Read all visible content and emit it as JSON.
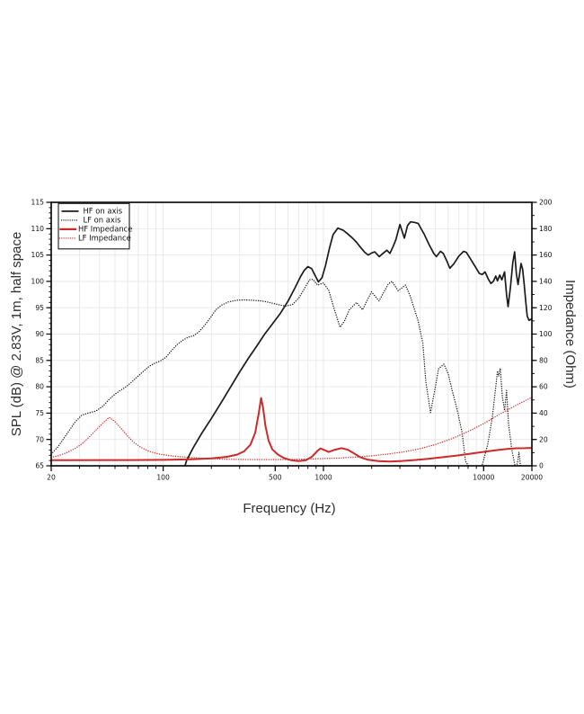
{
  "figure": {
    "background": "#ffffff",
    "accent_red": "#cc2b2b",
    "line_black": "#1b1b1b",
    "grid_color": "#e7e7e7"
  },
  "chart_data": {
    "type": "line",
    "x_scale": "log",
    "xlabel": "Frequency (Hz)",
    "ylabel_left": "SPL (dB) @ 2.83V, 1m, half space",
    "ylabel_right": "Impedance (Ohm)",
    "x_range": [
      20,
      20000
    ],
    "x_ticks_labeled": [
      20,
      100,
      500,
      1000,
      10000,
      20000
    ],
    "y_left_range": [
      65,
      115
    ],
    "y_left_ticks": [
      65,
      70,
      75,
      80,
      85,
      90,
      95,
      100,
      105,
      110,
      115
    ],
    "y_right_range": [
      0,
      200
    ],
    "y_right_ticks": [
      0,
      20,
      40,
      60,
      80,
      100,
      120,
      140,
      160,
      180,
      200
    ],
    "grid": true,
    "legend_position": "top-left",
    "series": [
      {
        "name": "HF on axis",
        "axis": "left",
        "unit": "dB",
        "color": "#1b1b1b",
        "style": "solid",
        "width": 1.7,
        "points": [
          [
            132,
            63.5
          ],
          [
            140,
            66
          ],
          [
            155,
            68.6
          ],
          [
            175,
            71.3
          ],
          [
            200,
            74
          ],
          [
            230,
            77
          ],
          [
            260,
            79.7
          ],
          [
            300,
            82.8
          ],
          [
            340,
            85.4
          ],
          [
            385,
            87.8
          ],
          [
            430,
            90
          ],
          [
            480,
            91.9
          ],
          [
            540,
            94
          ],
          [
            600,
            96.2
          ],
          [
            660,
            98.6
          ],
          [
            720,
            100.9
          ],
          [
            760,
            102.1
          ],
          [
            800,
            102.8
          ],
          [
            845,
            102.4
          ],
          [
            885,
            101.2
          ],
          [
            930,
            99.9
          ],
          [
            980,
            100.7
          ],
          [
            1030,
            103
          ],
          [
            1090,
            106.3
          ],
          [
            1150,
            108.9
          ],
          [
            1230,
            110.1
          ],
          [
            1330,
            109.7
          ],
          [
            1420,
            109
          ],
          [
            1520,
            108.2
          ],
          [
            1610,
            107.4
          ],
          [
            1700,
            106.5
          ],
          [
            1800,
            105.6
          ],
          [
            1900,
            105
          ],
          [
            2000,
            105.4
          ],
          [
            2090,
            105.6
          ],
          [
            2230,
            104.7
          ],
          [
            2350,
            105.3
          ],
          [
            2490,
            105.9
          ],
          [
            2600,
            105.3
          ],
          [
            2720,
            106.6
          ],
          [
            2830,
            107.9
          ],
          [
            3000,
            110.8
          ],
          [
            3200,
            108.2
          ],
          [
            3350,
            110.6
          ],
          [
            3500,
            111.3
          ],
          [
            3700,
            111.2
          ],
          [
            3900,
            111
          ],
          [
            4100,
            109.8
          ],
          [
            4250,
            109
          ],
          [
            4560,
            107
          ],
          [
            4880,
            105.3
          ],
          [
            5070,
            104.7
          ],
          [
            5370,
            105.7
          ],
          [
            5600,
            105.3
          ],
          [
            5900,
            103.8
          ],
          [
            6150,
            102.5
          ],
          [
            6500,
            103.3
          ],
          [
            7000,
            104.8
          ],
          [
            7500,
            105.7
          ],
          [
            7800,
            105.5
          ],
          [
            8300,
            104.2
          ],
          [
            8900,
            102.7
          ],
          [
            9400,
            101.5
          ],
          [
            9800,
            101.3
          ],
          [
            10200,
            101.8
          ],
          [
            10700,
            100.4
          ],
          [
            11100,
            99.6
          ],
          [
            11500,
            100
          ],
          [
            11900,
            101
          ],
          [
            12200,
            100.1
          ],
          [
            12600,
            101.2
          ],
          [
            13000,
            100.3
          ],
          [
            13500,
            101.8
          ],
          [
            13900,
            97.5
          ],
          [
            14200,
            95.2
          ],
          [
            14700,
            99
          ],
          [
            15200,
            103.5
          ],
          [
            15600,
            105.6
          ],
          [
            16000,
            101.5
          ],
          [
            16400,
            99.4
          ],
          [
            16800,
            101.6
          ],
          [
            17100,
            103.4
          ],
          [
            17500,
            102.3
          ],
          [
            17900,
            99.5
          ],
          [
            18300,
            96.3
          ],
          [
            18700,
            93.4
          ],
          [
            19200,
            92.6
          ],
          [
            20000,
            92.9
          ]
        ]
      },
      {
        "name": "LF on axis",
        "axis": "left",
        "unit": "dB",
        "color": "#1b1b1b",
        "style": "dotted",
        "width": 1.35,
        "points": [
          [
            20,
            67.2
          ],
          [
            22,
            68.6
          ],
          [
            25,
            71
          ],
          [
            28,
            73.2
          ],
          [
            31,
            74.6
          ],
          [
            34,
            75
          ],
          [
            38,
            75.4
          ],
          [
            42,
            76.3
          ],
          [
            46,
            77.6
          ],
          [
            50,
            78.6
          ],
          [
            54,
            79.3
          ],
          [
            58,
            79.9
          ],
          [
            63,
            80.8
          ],
          [
            69,
            81.9
          ],
          [
            75,
            82.9
          ],
          [
            82,
            83.9
          ],
          [
            89,
            84.5
          ],
          [
            96,
            84.9
          ],
          [
            104,
            85.6
          ],
          [
            113,
            86.9
          ],
          [
            122,
            88
          ],
          [
            132,
            88.8
          ],
          [
            143,
            89.4
          ],
          [
            155,
            89.7
          ],
          [
            168,
            90.5
          ],
          [
            182,
            91.7
          ],
          [
            197,
            93.1
          ],
          [
            213,
            94.6
          ],
          [
            232,
            95.5
          ],
          [
            255,
            96.1
          ],
          [
            285,
            96.4
          ],
          [
            320,
            96.5
          ],
          [
            360,
            96.4
          ],
          [
            410,
            96.3
          ],
          [
            460,
            96
          ],
          [
            520,
            95.6
          ],
          [
            580,
            95.3
          ],
          [
            640,
            95.6
          ],
          [
            700,
            96.8
          ],
          [
            760,
            98.6
          ],
          [
            820,
            100.3
          ],
          [
            860,
            100.4
          ],
          [
            920,
            99.3
          ],
          [
            1000,
            99.7
          ],
          [
            1080,
            98.3
          ],
          [
            1160,
            95
          ],
          [
            1270,
            91.3
          ],
          [
            1350,
            92.4
          ],
          [
            1450,
            94.6
          ],
          [
            1610,
            96
          ],
          [
            1755,
            94.6
          ],
          [
            1994,
            98
          ],
          [
            2225,
            96.3
          ],
          [
            2540,
            99.5
          ],
          [
            2680,
            100
          ],
          [
            2930,
            98.2
          ],
          [
            3250,
            99.3
          ],
          [
            3480,
            97.2
          ],
          [
            3890,
            92.6
          ],
          [
            4170,
            88.3
          ],
          [
            4360,
            80.9
          ],
          [
            4660,
            75.1
          ],
          [
            5000,
            80
          ],
          [
            5230,
            83.4
          ],
          [
            5650,
            84.3
          ],
          [
            6000,
            82.5
          ],
          [
            6310,
            79.7
          ],
          [
            6900,
            75.1
          ],
          [
            7350,
            71.1
          ],
          [
            7700,
            65.9
          ],
          [
            8100,
            64.8
          ],
          [
            9000,
            64.5
          ],
          [
            9800,
            65.2
          ],
          [
            10600,
            69
          ],
          [
            11300,
            74
          ],
          [
            11900,
            80
          ],
          [
            12200,
            83
          ],
          [
            12400,
            82
          ],
          [
            12700,
            83.5
          ],
          [
            13100,
            78
          ],
          [
            13500,
            75.5
          ],
          [
            13900,
            79.3
          ],
          [
            14300,
            73
          ],
          [
            15000,
            68
          ],
          [
            15900,
            64.2
          ],
          [
            16300,
            65.8
          ],
          [
            16600,
            67.6
          ],
          [
            16900,
            65.5
          ],
          [
            17400,
            63.8
          ]
        ]
      },
      {
        "name": "HF Impedance",
        "axis": "right",
        "unit": "Ohm",
        "color": "#cc2b2b",
        "style": "solid",
        "width": 2.0,
        "points": [
          [
            20,
            4.2
          ],
          [
            60,
            4.4
          ],
          [
            100,
            4.5
          ],
          [
            150,
            4.9
          ],
          [
            200,
            5.6
          ],
          [
            250,
            6.8
          ],
          [
            290,
            8.5
          ],
          [
            320,
            11
          ],
          [
            350,
            16
          ],
          [
            375,
            25
          ],
          [
            395,
            40
          ],
          [
            408,
            51.5
          ],
          [
            420,
            44
          ],
          [
            435,
            30
          ],
          [
            455,
            19
          ],
          [
            480,
            12.5
          ],
          [
            520,
            8.5
          ],
          [
            570,
            5.8
          ],
          [
            630,
            4.2
          ],
          [
            700,
            3.6
          ],
          [
            780,
            4.3
          ],
          [
            850,
            7
          ],
          [
            920,
            11.5
          ],
          [
            960,
            13.2
          ],
          [
            1020,
            11.8
          ],
          [
            1080,
            10.5
          ],
          [
            1180,
            12.2
          ],
          [
            1300,
            13.4
          ],
          [
            1420,
            12.2
          ],
          [
            1550,
            9.5
          ],
          [
            1700,
            6.5
          ],
          [
            1900,
            4.6
          ],
          [
            2200,
            3.6
          ],
          [
            2600,
            3.3
          ],
          [
            3100,
            3.7
          ],
          [
            3700,
            4.4
          ],
          [
            4500,
            5.3
          ],
          [
            5500,
            6.5
          ],
          [
            6800,
            7.8
          ],
          [
            8300,
            9.2
          ],
          [
            10000,
            10.6
          ],
          [
            12000,
            11.9
          ],
          [
            14000,
            12.8
          ],
          [
            16000,
            13.3
          ],
          [
            18000,
            13.4
          ],
          [
            20000,
            13.6
          ]
        ]
      },
      {
        "name": "LF Impedance",
        "axis": "right",
        "unit": "Ohm",
        "color": "#cc2b2b",
        "style": "dotted",
        "width": 1.35,
        "points": [
          [
            20,
            6.5
          ],
          [
            22,
            7.5
          ],
          [
            25,
            10
          ],
          [
            28,
            13
          ],
          [
            31,
            16.5
          ],
          [
            34,
            21
          ],
          [
            38,
            27
          ],
          [
            42,
            32.5
          ],
          [
            46,
            36.8
          ],
          [
            50,
            33.5
          ],
          [
            55,
            28
          ],
          [
            60,
            22.5
          ],
          [
            66,
            17.5
          ],
          [
            73,
            13.8
          ],
          [
            80,
            11.5
          ],
          [
            90,
            9.5
          ],
          [
            100,
            8.4
          ],
          [
            115,
            7.4
          ],
          [
            135,
            6.6
          ],
          [
            160,
            6
          ],
          [
            200,
            5.4
          ],
          [
            250,
            5
          ],
          [
            320,
            4.8
          ],
          [
            400,
            4.7
          ],
          [
            500,
            4.7
          ],
          [
            630,
            4.8
          ],
          [
            800,
            5.1
          ],
          [
            1000,
            5.5
          ],
          [
            1250,
            5.9
          ],
          [
            1600,
            6.6
          ],
          [
            2000,
            7.6
          ],
          [
            2500,
            8.9
          ],
          [
            3150,
            10.5
          ],
          [
            4000,
            13
          ],
          [
            5000,
            16.2
          ],
          [
            6300,
            20.5
          ],
          [
            8000,
            26
          ],
          [
            10000,
            32
          ],
          [
            12500,
            39
          ],
          [
            16000,
            46
          ],
          [
            20000,
            52
          ]
        ]
      }
    ]
  }
}
